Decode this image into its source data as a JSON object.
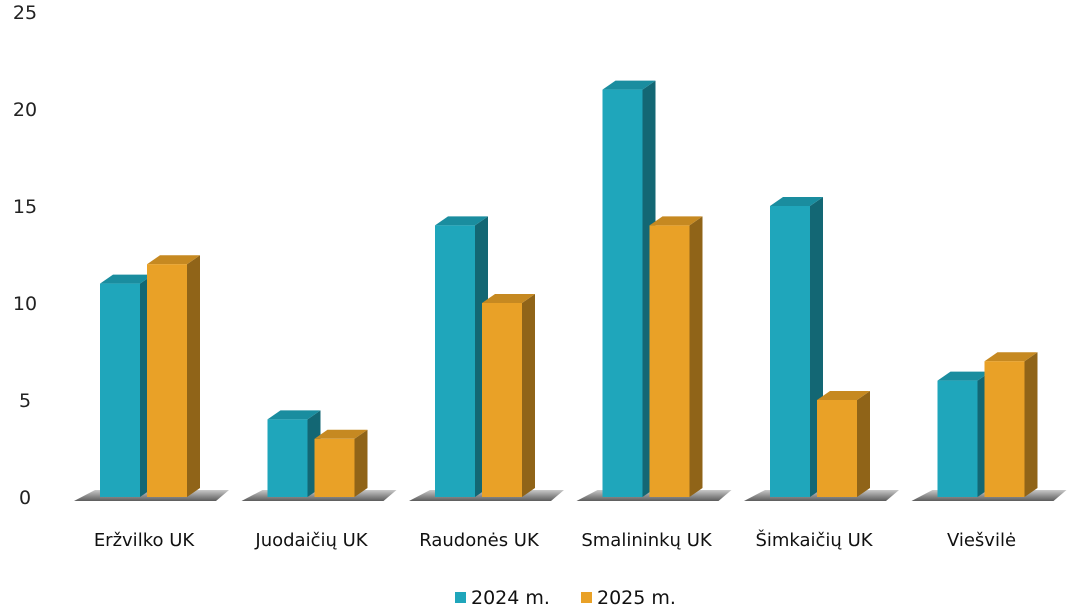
{
  "chart_data": {
    "type": "bar",
    "title": "",
    "xlabel": "",
    "ylabel": "",
    "ylim": [
      0,
      25
    ],
    "yticks": [
      0,
      5,
      10,
      15,
      20,
      25
    ],
    "grid": false,
    "legend_position": "bottom",
    "categories": [
      "Eržvilko UK",
      "Juodaičių UK",
      "Raudonės UK",
      "Smalininkų UK",
      "Šimkaičių UK",
      "Viešvilė"
    ],
    "series": [
      {
        "name": "2024 m.",
        "color": "#1fa6bb",
        "values": [
          11,
          4,
          14,
          21,
          15,
          6
        ]
      },
      {
        "name": "2025 m.",
        "color": "#e9a127",
        "values": [
          12,
          3,
          10,
          14,
          5,
          7
        ]
      }
    ]
  }
}
